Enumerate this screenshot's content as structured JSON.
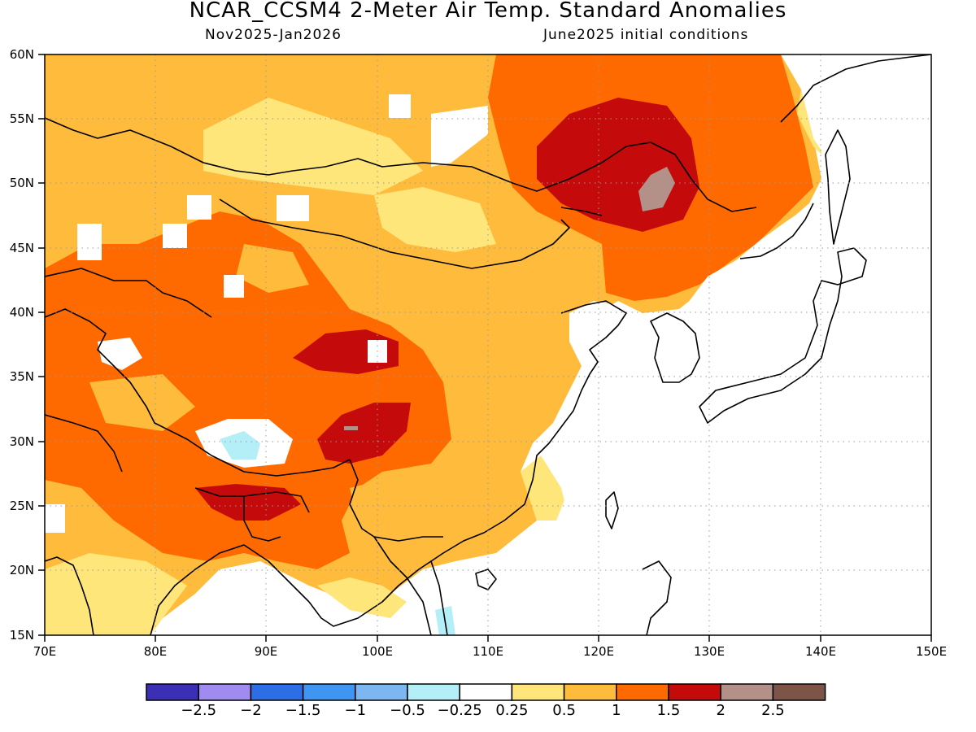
{
  "title": "NCAR_CCSM4 2-Meter Air Temp. Standard Anomalies",
  "subtitle_left": "Nov2025-Jan2026",
  "subtitle_right": "June2025 initial conditions",
  "map": {
    "lat_ticks": [
      "60N",
      "55N",
      "50N",
      "45N",
      "40N",
      "35N",
      "30N",
      "25N",
      "20N",
      "15N"
    ],
    "lon_ticks": [
      "70E",
      "80E",
      "90E",
      "100E",
      "110E",
      "120E",
      "130E",
      "140E",
      "150E"
    ]
  },
  "colorbar": {
    "colors": [
      "#3b2fb5",
      "#a08cf0",
      "#2c6ee6",
      "#3f96f2",
      "#7db7f2",
      "#b4eef6",
      "#ffffff",
      "#ffe67a",
      "#ffbb3c",
      "#ff6a00",
      "#c40a0a",
      "#b39188",
      "#7d5548"
    ],
    "labels": [
      "-2.5",
      "-2",
      "-1.5",
      "-1",
      "-0.5",
      "-0.25",
      "0.25",
      "0.5",
      "1",
      "1.5",
      "2",
      "2.5"
    ]
  },
  "legend_colors": {
    "anom_0_25_0_5": "#ffe67a",
    "anom_0_5_1": "#ffbb3c",
    "anom_1_1_5": "#ff6a00",
    "anom_1_5_2": "#c40a0a",
    "anom_2_2_5": "#b39188",
    "anom_neg_0_25_neg_0_5": "#b4eef6"
  }
}
